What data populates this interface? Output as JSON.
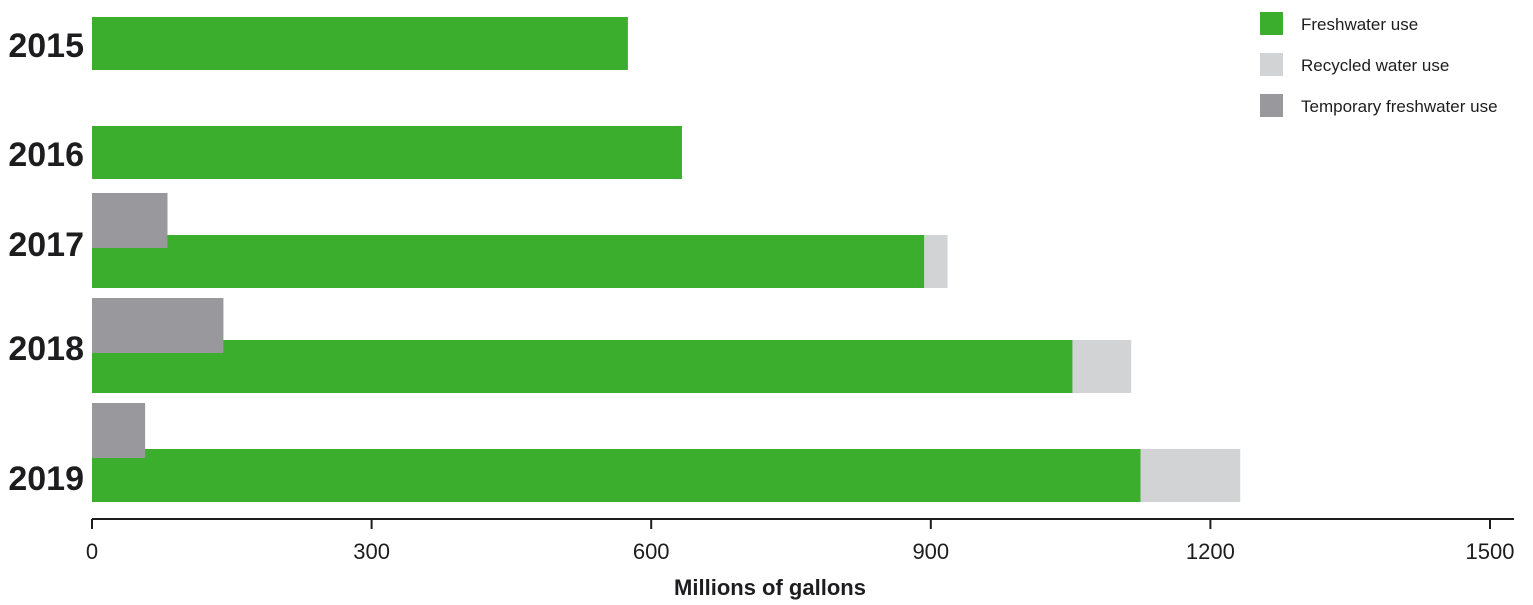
{
  "chart_data": {
    "type": "bar",
    "orientation": "horizontal",
    "categories": [
      "2015",
      "2016",
      "2017",
      "2018",
      "2019"
    ],
    "series": [
      {
        "name": "Freshwater use",
        "color": "#3cae2e",
        "values": [
          575,
          633,
          893,
          1052,
          1125
        ]
      },
      {
        "name": "Recycled water use",
        "color": "#d2d3d5",
        "values": [
          0,
          0,
          25,
          63,
          107
        ]
      },
      {
        "name": "Temporary freshwater use",
        "color": "#98989d",
        "values": [
          0,
          0,
          81,
          141,
          57
        ]
      }
    ],
    "stacked_series": [
      "Freshwater use",
      "Recycled water use"
    ],
    "xlabel": "Millions of gallons",
    "ylabel": "",
    "title": "",
    "xlim": [
      0,
      1500
    ],
    "xticks": [
      "0",
      "300",
      "600",
      "900",
      "1200",
      "1500"
    ],
    "grid": false,
    "legend_position": "top-right"
  }
}
